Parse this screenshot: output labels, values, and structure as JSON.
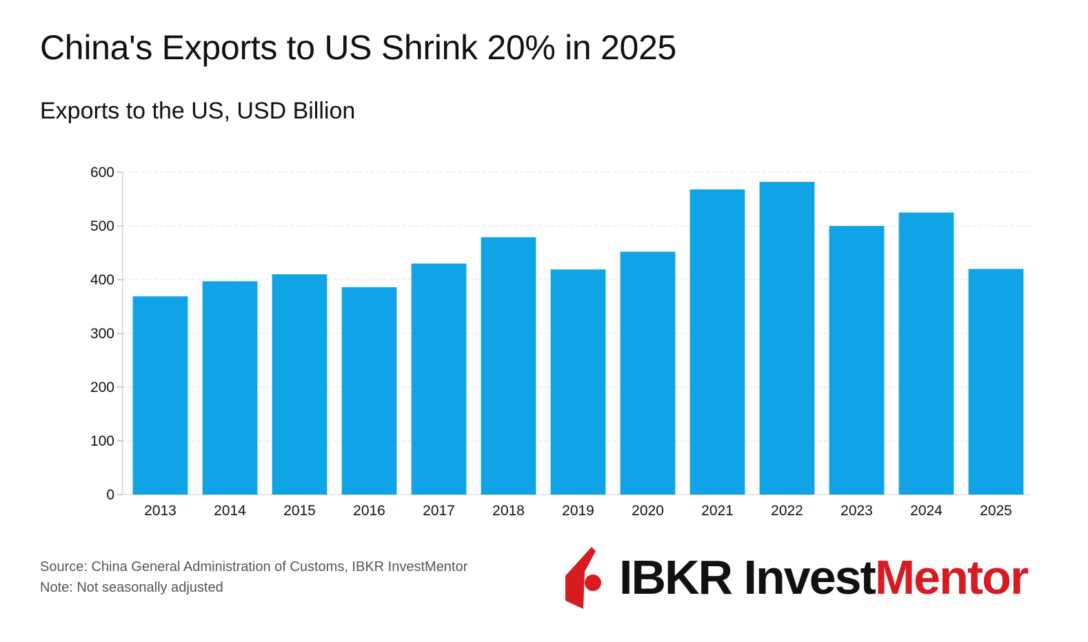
{
  "header": {
    "title": "China's Exports to US Shrink 20% in 2025",
    "subtitle": "Exports to the US, USD Billion"
  },
  "chart_data": {
    "type": "bar",
    "title": "China's Exports to US Shrink 20% in 2025",
    "subtitle": "Exports to the US, USD Billion",
    "categories": [
      "2013",
      "2014",
      "2015",
      "2016",
      "2017",
      "2018",
      "2019",
      "2020",
      "2021",
      "2022",
      "2023",
      "2024",
      "2025"
    ],
    "values": [
      369,
      397,
      410,
      386,
      430,
      479,
      419,
      452,
      568,
      582,
      500,
      525,
      420
    ],
    "xlabel": "",
    "ylabel": "",
    "ylim": [
      0,
      600
    ],
    "yticks": [
      0,
      100,
      200,
      300,
      400,
      500,
      600
    ],
    "grid": true,
    "bar_color": "#10a4e6"
  },
  "footer": {
    "source": "Source: China General Administration of Customs, IBKR InvestMentor",
    "note": "Note: Not seasonally adjusted"
  },
  "logo": {
    "brand": "IBKR InvestMentor",
    "part1": "IBKR Invest",
    "part2": "Mentor",
    "icon": "ibkr-sail-icon",
    "accent": "#d81b21"
  }
}
